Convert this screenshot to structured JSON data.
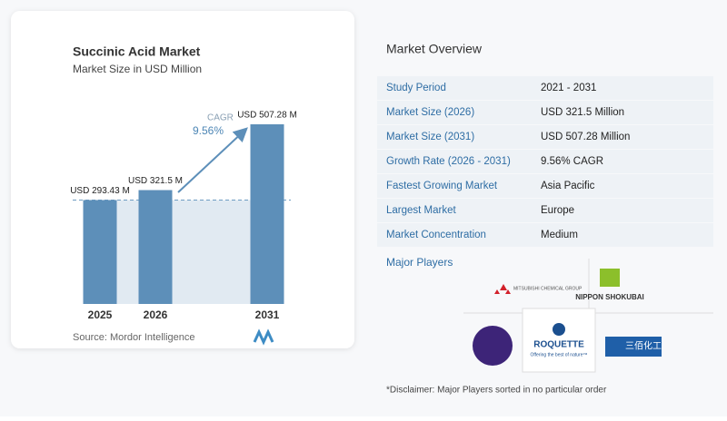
{
  "chart_data": {
    "type": "bar",
    "title": "Succinic Acid Market",
    "subtitle": "Market Size in USD Million",
    "categories": [
      "2025",
      "2026",
      "2031"
    ],
    "values": [
      293.43,
      321.5,
      507.28
    ],
    "value_labels": [
      "USD 293.43 M",
      "USD 321.5 M",
      "USD 507.28 M"
    ],
    "color": "#5d8fb9",
    "annotation": {
      "label": "CAGR",
      "value": "9.56%"
    },
    "source": "Source: Mordor Intelligence"
  },
  "overview": {
    "title": "Market Overview",
    "rows": [
      [
        "Study Period",
        "2021 - 2031"
      ],
      [
        "Market Size (2026)",
        "USD 321.5 Million"
      ],
      [
        "Market Size (2031)",
        "USD 507.28 Million"
      ],
      [
        "Growth Rate (2026 - 2031)",
        "9.56% CAGR"
      ],
      [
        "Fastest Growing Market",
        "Asia Pacific"
      ],
      [
        "Largest Market",
        "Europe"
      ],
      [
        "Market Concentration",
        "Medium"
      ]
    ]
  },
  "major_players": {
    "title": "Major Players",
    "logos": [
      "MITSUBISHI CHEMICAL GROUP",
      "NIPPON SHOKUBAI",
      "ROQUETTE",
      "Offering the best of nature™",
      "三佰化工"
    ]
  },
  "disclaimer": "*Disclaimer: Major Players sorted in no particular order"
}
